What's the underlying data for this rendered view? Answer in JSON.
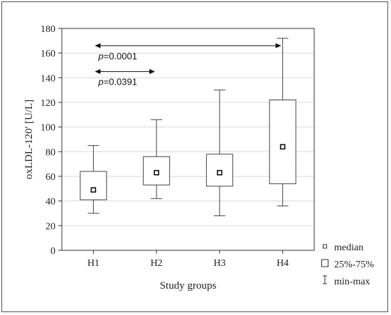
{
  "chart_data": {
    "type": "box",
    "xlabel": "Study groups",
    "ylabel": "oxLDL-120' [U/L]",
    "ylim": [
      0,
      180
    ],
    "yticks": [
      0,
      20,
      40,
      60,
      80,
      100,
      120,
      140,
      160,
      180
    ],
    "categories": [
      "H1",
      "H2",
      "H3",
      "H4"
    ],
    "boxes": [
      {
        "category": "H1",
        "min": 30,
        "q1": 41,
        "median": 49,
        "q3": 64,
        "max": 85
      },
      {
        "category": "H2",
        "min": 42,
        "q1": 53,
        "median": 63,
        "q3": 76,
        "max": 106
      },
      {
        "category": "H3",
        "min": 28,
        "q1": 52,
        "median": 63,
        "q3": 78,
        "max": 130
      },
      {
        "category": "H4",
        "min": 36,
        "q1": 54,
        "median": 84,
        "q3": 122,
        "max": 172
      }
    ],
    "annotations": [
      {
        "from": "H1",
        "to": "H4",
        "y": 166,
        "p_prefix": "p",
        "p_value": "=0.0001"
      },
      {
        "from": "H1",
        "to": "H2",
        "y": 145,
        "p_prefix": "p",
        "p_value": "=0.0391"
      }
    ],
    "legend": {
      "position": "right",
      "items": [
        "median",
        "25%-75%",
        "min-max"
      ]
    },
    "grid": "horizontal"
  }
}
